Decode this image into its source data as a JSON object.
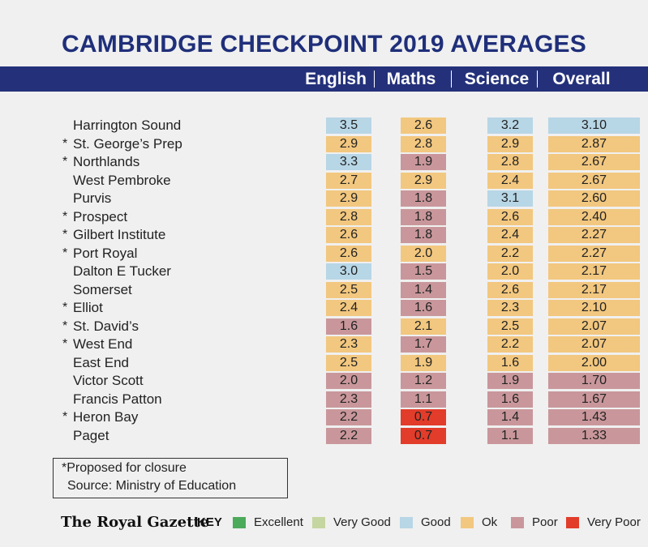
{
  "title": "CAMBRIDGE CHECKPOINT 2019 AVERAGES",
  "columns": [
    "English",
    "Maths",
    "Science",
    "Overall"
  ],
  "colors": {
    "excellent": "#4caa5b",
    "very_good": "#c5d6a0",
    "good": "#b7d6e6",
    "ok": "#f2c77f",
    "poor": "#c9979b",
    "very_poor": "#e23c2a",
    "header": "#24317a",
    "title": "#1f2f7a"
  },
  "chart_data": {
    "type": "table",
    "title": "CAMBRIDGE CHECKPOINT 2019 AVERAGES",
    "columns": [
      "English",
      "Maths",
      "Science",
      "Overall"
    ],
    "rows": [
      {
        "school": "Harrington Sound",
        "closure": false,
        "values": [
          "3.5",
          "2.6",
          "3.2",
          "3.10"
        ],
        "ratings": [
          "good",
          "ok",
          "good",
          "good"
        ]
      },
      {
        "school": "St. George’s Prep",
        "closure": true,
        "values": [
          "2.9",
          "2.8",
          "2.9",
          "2.87"
        ],
        "ratings": [
          "ok",
          "ok",
          "ok",
          "ok"
        ]
      },
      {
        "school": "Northlands",
        "closure": true,
        "values": [
          "3.3",
          "1.9",
          "2.8",
          "2.67"
        ],
        "ratings": [
          "good",
          "poor",
          "ok",
          "ok"
        ]
      },
      {
        "school": "West Pembroke",
        "closure": false,
        "values": [
          "2.7",
          "2.9",
          "2.4",
          "2.67"
        ],
        "ratings": [
          "ok",
          "ok",
          "ok",
          "ok"
        ]
      },
      {
        "school": "Purvis",
        "closure": false,
        "values": [
          "2.9",
          "1.8",
          "3.1",
          "2.60"
        ],
        "ratings": [
          "ok",
          "poor",
          "good",
          "ok"
        ]
      },
      {
        "school": "Prospect",
        "closure": true,
        "values": [
          "2.8",
          "1.8",
          "2.6",
          "2.40"
        ],
        "ratings": [
          "ok",
          "poor",
          "ok",
          "ok"
        ]
      },
      {
        "school": "Gilbert Institute",
        "closure": true,
        "values": [
          "2.6",
          "1.8",
          "2.4",
          "2.27"
        ],
        "ratings": [
          "ok",
          "poor",
          "ok",
          "ok"
        ]
      },
      {
        "school": "Port Royal",
        "closure": true,
        "values": [
          "2.6",
          "2.0",
          "2.2",
          "2.27"
        ],
        "ratings": [
          "ok",
          "ok",
          "ok",
          "ok"
        ]
      },
      {
        "school": "Dalton E Tucker",
        "closure": false,
        "values": [
          "3.0",
          "1.5",
          "2.0",
          "2.17"
        ],
        "ratings": [
          "good",
          "poor",
          "ok",
          "ok"
        ]
      },
      {
        "school": "Somerset",
        "closure": false,
        "values": [
          "2.5",
          "1.4",
          "2.6",
          "2.17"
        ],
        "ratings": [
          "ok",
          "poor",
          "ok",
          "ok"
        ]
      },
      {
        "school": "Elliot",
        "closure": true,
        "values": [
          "2.4",
          "1.6",
          "2.3",
          "2.10"
        ],
        "ratings": [
          "ok",
          "poor",
          "ok",
          "ok"
        ]
      },
      {
        "school": "St. David’s",
        "closure": true,
        "values": [
          "1.6",
          "2.1",
          "2.5",
          "2.07"
        ],
        "ratings": [
          "poor",
          "ok",
          "ok",
          "ok"
        ]
      },
      {
        "school": "West End",
        "closure": true,
        "values": [
          "2.3",
          "1.7",
          "2.2",
          "2.07"
        ],
        "ratings": [
          "ok",
          "poor",
          "ok",
          "ok"
        ]
      },
      {
        "school": "East End",
        "closure": false,
        "values": [
          "2.5",
          "1.9",
          "1.6",
          "2.00"
        ],
        "ratings": [
          "ok",
          "ok",
          "ok",
          "ok"
        ]
      },
      {
        "school": "Victor Scott",
        "closure": false,
        "values": [
          "2.0",
          "1.2",
          "1.9",
          "1.70"
        ],
        "ratings": [
          "poor",
          "poor",
          "poor",
          "poor"
        ]
      },
      {
        "school": "Francis Patton",
        "closure": false,
        "values": [
          "2.3",
          "1.1",
          "1.6",
          "1.67"
        ],
        "ratings": [
          "poor",
          "poor",
          "poor",
          "poor"
        ]
      },
      {
        "school": "Heron Bay",
        "closure": true,
        "values": [
          "2.2",
          "0.7",
          "1.4",
          "1.43"
        ],
        "ratings": [
          "poor",
          "very_poor",
          "poor",
          "poor"
        ]
      },
      {
        "school": "Paget",
        "closure": false,
        "values": [
          "2.2",
          "0.7",
          "1.1",
          "1.33"
        ],
        "ratings": [
          "poor",
          "very_poor",
          "poor",
          "poor"
        ]
      }
    ]
  },
  "closure_marker": "*",
  "footnote": {
    "line1": "*Proposed for closure",
    "line2": "Source: Ministry of Education"
  },
  "footer": {
    "logo": "The Royal Gazette",
    "key_label": "KEY",
    "legend": [
      {
        "rating": "excellent",
        "label": "Excellent"
      },
      {
        "rating": "very_good",
        "label": "Very Good"
      },
      {
        "rating": "good",
        "label": "Good"
      },
      {
        "rating": "ok",
        "label": "Ok"
      },
      {
        "rating": "poor",
        "label": "Poor"
      },
      {
        "rating": "very_poor",
        "label": "Very Poor"
      }
    ]
  }
}
